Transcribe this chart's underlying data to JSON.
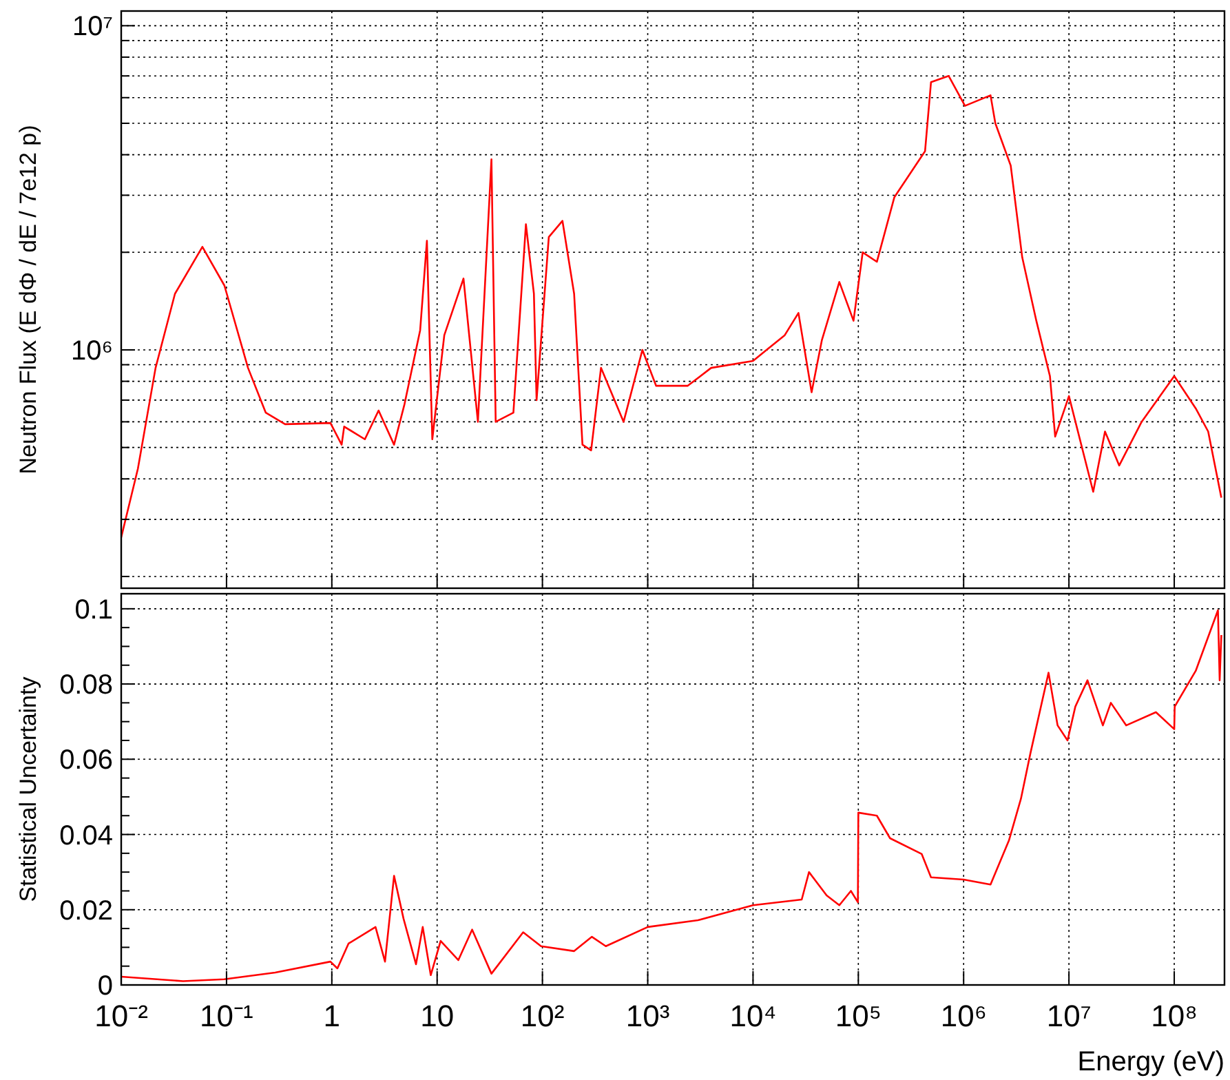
{
  "chart_data": [
    {
      "type": "line",
      "ylabel": "Neutron Flux (E dΦ / dE / 7e12 p)",
      "log": "xy",
      "grid": true,
      "tick_labels": "y",
      "line_style": "solid",
      "xlim": [
        0.01,
        300000000
      ],
      "ylim": [
        184000,
        11100000
      ],
      "xticks": [
        {
          "value": 0.01,
          "label": null
        },
        {
          "value": 0.1,
          "label": null
        },
        {
          "value": 1,
          "label": null
        },
        {
          "value": 10,
          "label": null
        },
        {
          "value": 100,
          "label": null
        },
        {
          "value": 1000,
          "label": null
        },
        {
          "value": 10000,
          "label": null
        },
        {
          "value": 100000,
          "label": null
        },
        {
          "value": 1000000,
          "label": null
        },
        {
          "value": 10000000,
          "label": null
        },
        {
          "value": 100000000,
          "label": null
        }
      ],
      "yticks": [
        {
          "value": 200000,
          "label": null
        },
        {
          "value": 300000,
          "label": null
        },
        {
          "value": 400000,
          "label": null
        },
        {
          "value": 500000,
          "label": null
        },
        {
          "value": 600000,
          "label": null
        },
        {
          "value": 700000,
          "label": null
        },
        {
          "value": 800000,
          "label": null
        },
        {
          "value": 900000,
          "label": null
        },
        {
          "value": 1000000,
          "label": "10⁶"
        },
        {
          "value": 2000000,
          "label": null
        },
        {
          "value": 3000000,
          "label": null
        },
        {
          "value": 4000000,
          "label": null
        },
        {
          "value": 5000000,
          "label": null
        },
        {
          "value": 6000000,
          "label": null
        },
        {
          "value": 7000000,
          "label": null
        },
        {
          "value": 8000000,
          "label": null
        },
        {
          "value": 9000000,
          "label": null
        },
        {
          "value": 10000000,
          "label": "10⁷"
        }
      ],
      "x": [
        0.01,
        0.0144,
        0.0212,
        0.0324,
        0.059,
        0.0955,
        0.16,
        0.236,
        0.36,
        0.97,
        1.24,
        1.31,
        2.06,
        2.78,
        3.9,
        4.9,
        6.9,
        8.0,
        9.0,
        11.7,
        17.8,
        24.4,
        32.8,
        36,
        53,
        69.7,
        83,
        88,
        115,
        155,
        200,
        240,
        290,
        360,
        590,
        890,
        1200,
        2400,
        4000,
        10000,
        20000,
        27000,
        36000,
        45000,
        66000,
        90000,
        110000,
        150000,
        220000,
        430000,
        490000,
        720000,
        1030000,
        1800000,
        2000000,
        2800000,
        3600000,
        4900000,
        6600000,
        7400000,
        10000000,
        17000000,
        22000000,
        30000000,
        49000000,
        100000000,
        160000000,
        210000000,
        280000000
      ],
      "series": [
        {
          "color": "#ff0000",
          "values": [
            264000,
            430000,
            880000,
            1490000,
            2080000,
            1580000,
            880000,
            640000,
            590000,
            595000,
            510000,
            580000,
            530000,
            650000,
            510000,
            680000,
            1150000,
            2170000,
            530000,
            1110000,
            1660000,
            600000,
            3870000,
            600000,
            640000,
            2440000,
            1490000,
            700000,
            2230000,
            2500000,
            1490000,
            510000,
            490000,
            880000,
            600000,
            1000000,
            775000,
            775000,
            880000,
            925000,
            1110000,
            1300000,
            740000,
            1070000,
            1620000,
            1230000,
            2000000,
            1870000,
            2960000,
            4100000,
            6700000,
            7000000,
            5660000,
            6100000,
            5000000,
            3700000,
            1930000,
            1230000,
            830000,
            540000,
            720000,
            365000,
            560000,
            440000,
            600000,
            830000,
            660000,
            560000,
            350000
          ]
        }
      ]
    },
    {
      "type": "line",
      "xlabel": "Energy (eV)",
      "ylabel": "Statistical Uncertainty",
      "log": "x",
      "grid": true,
      "line_style": "solid",
      "xlim": [
        0.01,
        300000000
      ],
      "ylim": [
        0,
        0.104
      ],
      "xticks": [
        {
          "value": 0.01,
          "label": "10⁻²"
        },
        {
          "value": 0.1,
          "label": "10⁻¹"
        },
        1,
        10,
        {
          "value": 100,
          "label": "10²"
        },
        {
          "value": 1000,
          "label": "10³"
        },
        {
          "value": 10000,
          "label": "10⁴"
        },
        {
          "value": 100000,
          "label": "10⁵"
        },
        {
          "value": 1000000,
          "label": "10⁶"
        },
        {
          "value": 10000000,
          "label": "10⁷"
        },
        {
          "value": 100000000,
          "label": "10⁸"
        }
      ],
      "yticks": [
        0,
        {
          "value": 0.005,
          "label": null
        },
        {
          "value": 0.01,
          "label": null
        },
        {
          "value": 0.015,
          "label": null
        },
        0.02,
        {
          "value": 0.025,
          "label": null
        },
        {
          "value": 0.03,
          "label": null
        },
        {
          "value": 0.035,
          "label": null
        },
        0.04,
        {
          "value": 0.045,
          "label": null
        },
        {
          "value": 0.05,
          "label": null
        },
        {
          "value": 0.055,
          "label": null
        },
        0.06,
        {
          "value": 0.065,
          "label": null
        },
        {
          "value": 0.07,
          "label": null
        },
        {
          "value": 0.075,
          "label": null
        },
        0.08,
        {
          "value": 0.085,
          "label": null
        },
        {
          "value": 0.09,
          "label": null
        },
        {
          "value": 0.095,
          "label": null
        },
        0.1
      ],
      "x": [
        0.01,
        0.0387,
        0.095,
        0.29,
        0.97,
        1.13,
        1.44,
        2.6,
        3.2,
        3.9,
        4.8,
        6.3,
        7.3,
        8.7,
        10.8,
        15.9,
        21.5,
        32.8,
        65.6,
        97,
        200,
        295,
        400,
        1000,
        3000,
        10000,
        29000,
        34000,
        50000,
        66000,
        85000,
        99000,
        100000,
        150000,
        200000,
        400000,
        490000,
        1000000,
        1800000,
        2700000,
        3500000,
        4300000,
        6400000,
        7800000,
        9700000,
        11500000,
        15000000,
        21000000,
        25000000,
        35000000,
        67000000,
        100000000,
        101000000,
        160000000,
        260000000,
        270000000,
        280000000
      ],
      "series": [
        {
          "color": "#ff0000",
          "values": [
            0.0022,
            0.001,
            0.0015,
            0.0033,
            0.0062,
            0.0044,
            0.011,
            0.0154,
            0.0062,
            0.029,
            0.0176,
            0.0055,
            0.0154,
            0.0026,
            0.0117,
            0.0066,
            0.0147,
            0.003,
            0.014,
            0.0103,
            0.009,
            0.0128,
            0.0103,
            0.0154,
            0.0172,
            0.0212,
            0.0227,
            0.03,
            0.0238,
            0.0212,
            0.025,
            0.022,
            0.0458,
            0.045,
            0.039,
            0.0348,
            0.0286,
            0.028,
            0.0267,
            0.0385,
            0.0495,
            0.0615,
            0.083,
            0.069,
            0.065,
            0.074,
            0.081,
            0.069,
            0.075,
            0.069,
            0.0725,
            0.068,
            0.074,
            0.0835,
            0.0996,
            0.081,
            0.093
          ]
        }
      ]
    }
  ]
}
